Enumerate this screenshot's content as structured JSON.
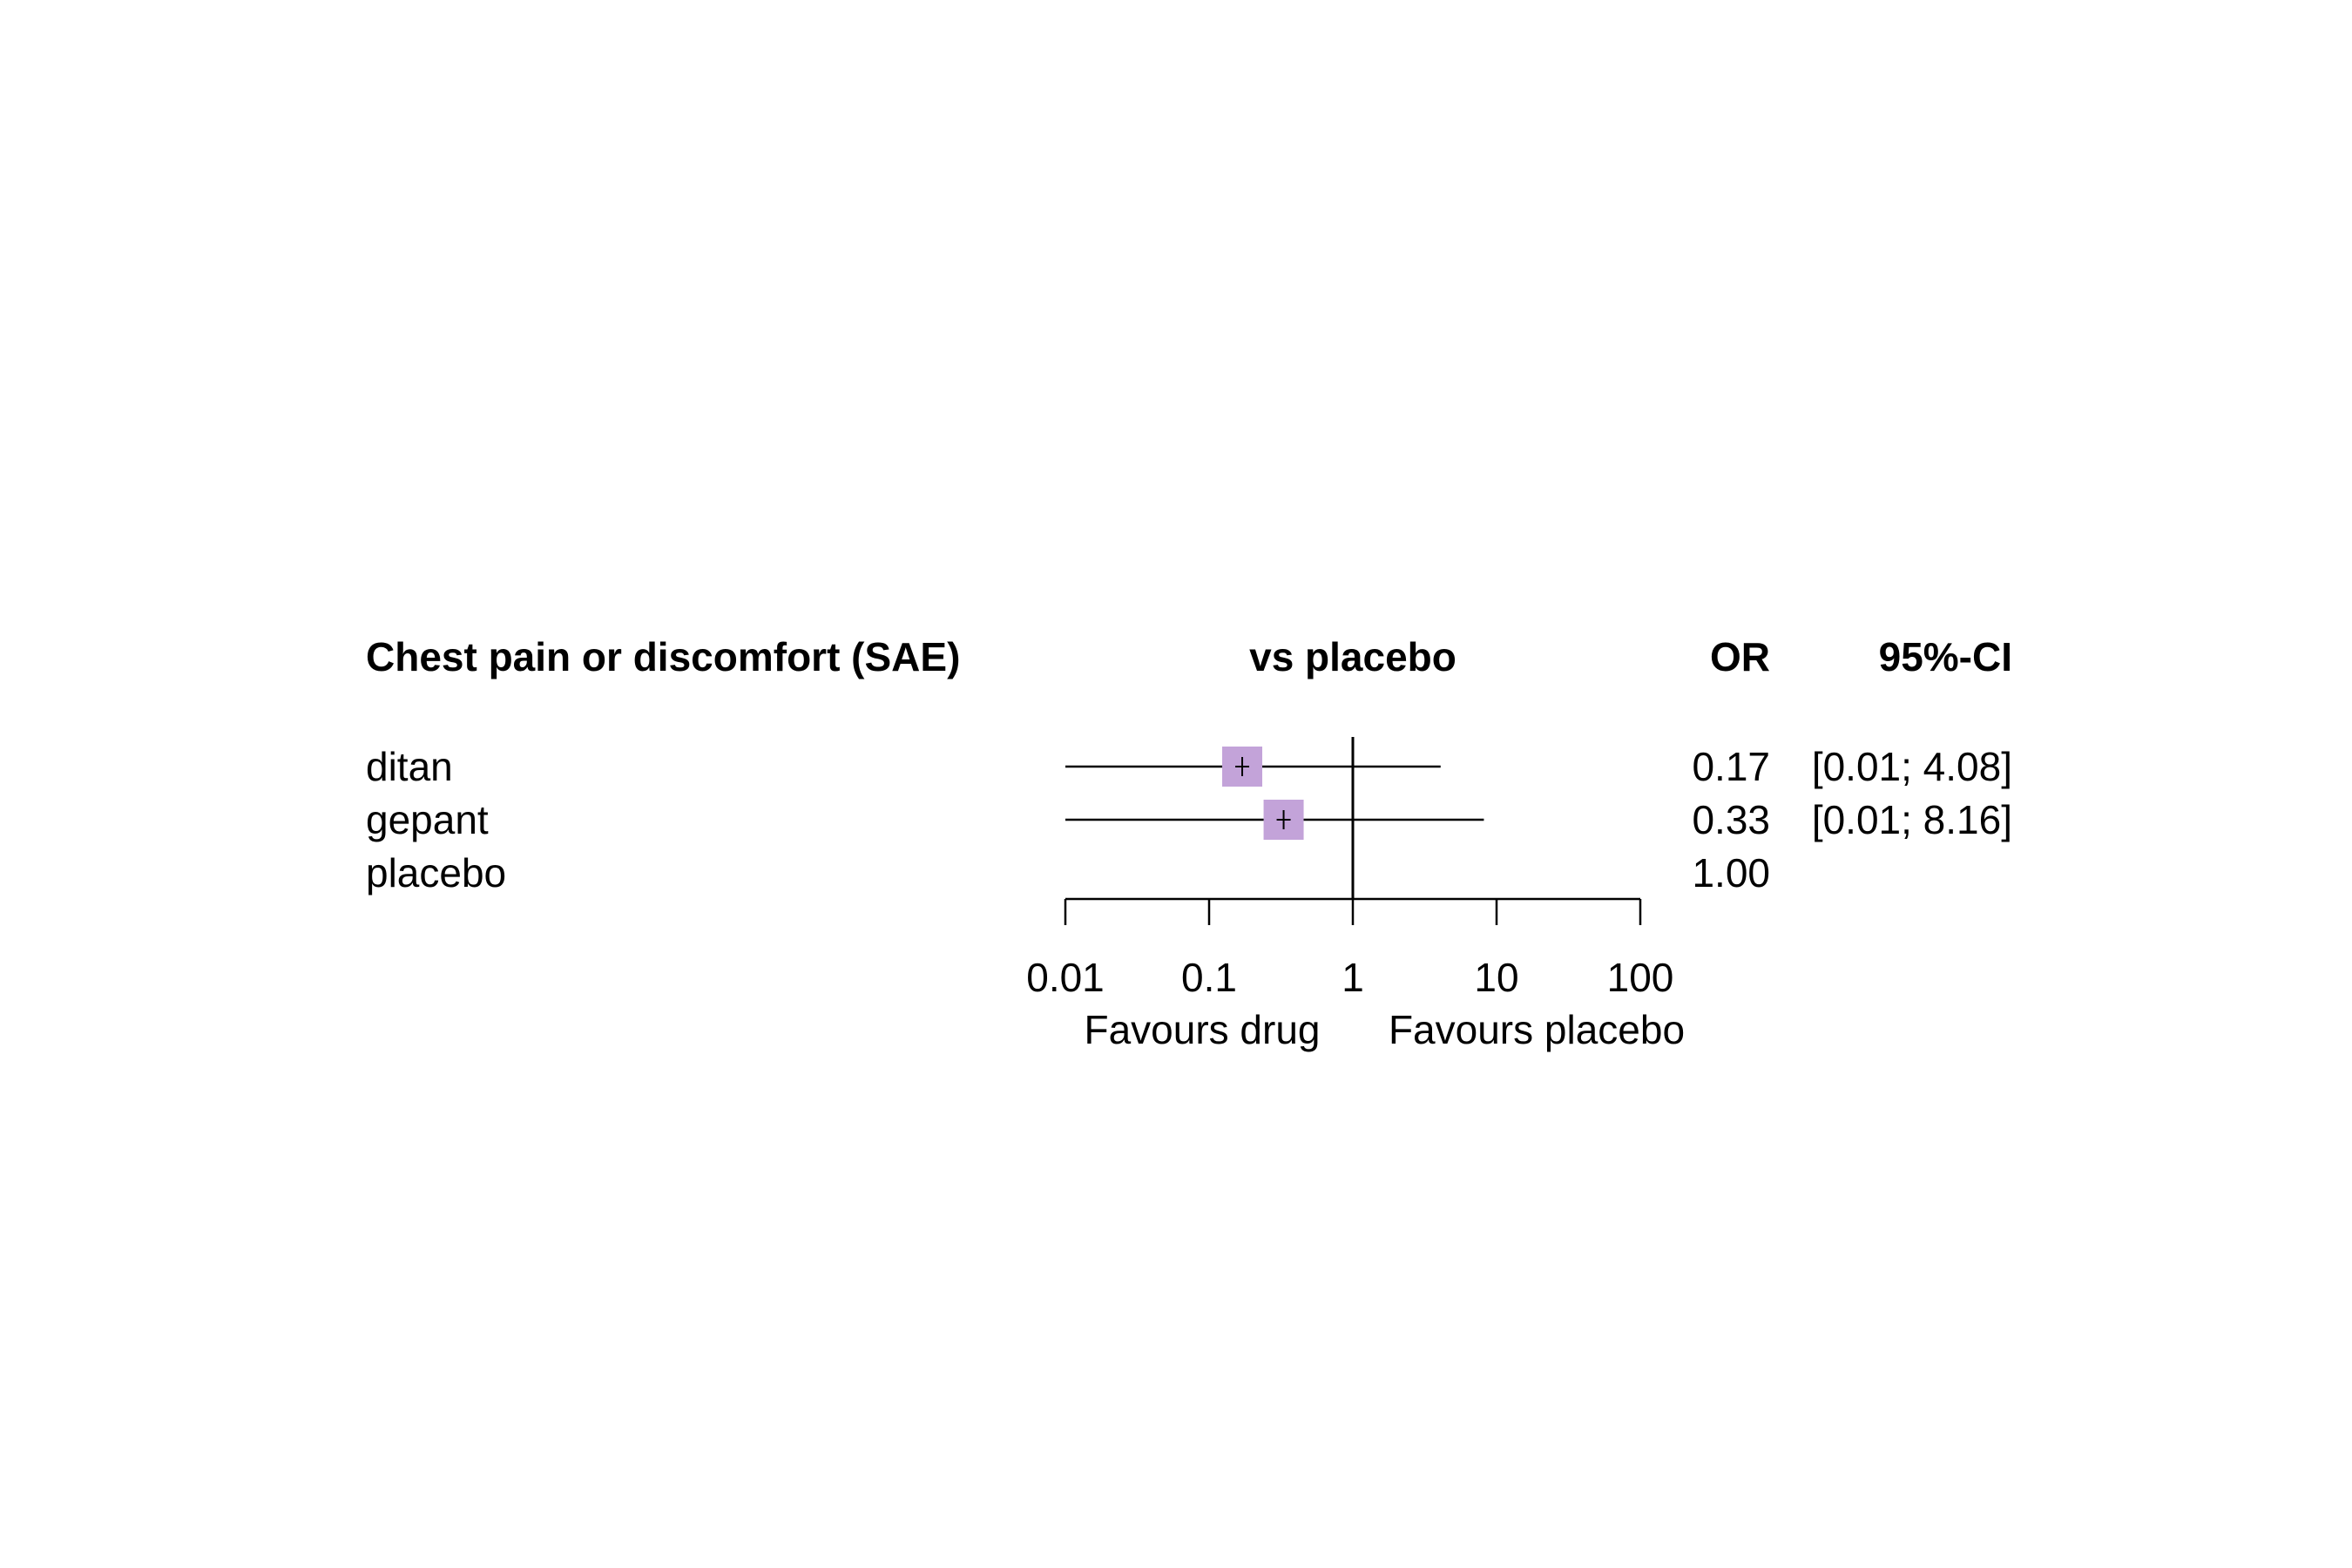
{
  "chart_data": {
    "type": "forest",
    "title": "Chest pain or discomfort (SAE)",
    "comparison_header": "vs placebo",
    "or_header": "OR",
    "ci_header": "95%-CI",
    "x_scale": "log",
    "xlim": [
      0.01,
      100
    ],
    "x_ticks": [
      0.01,
      0.1,
      1,
      10,
      100
    ],
    "x_tick_labels": [
      "0.01",
      "0.1",
      "1",
      "10",
      "100"
    ],
    "reference_value": 1,
    "left_label": "Favours drug",
    "right_label": "Favours placebo",
    "marker_color": "#c3a3d9",
    "rows": [
      {
        "label": "ditan",
        "or": 0.17,
        "lower": 0.01,
        "upper": 4.08,
        "or_text": "0.17",
        "ci_text": "[0.01; 4.08]",
        "has_interval": true
      },
      {
        "label": "gepant",
        "or": 0.33,
        "lower": 0.01,
        "upper": 8.16,
        "or_text": "0.33",
        "ci_text": "[0.01; 8.16]",
        "has_interval": true
      },
      {
        "label": "placebo",
        "or": 1.0,
        "or_text": "1.00",
        "ci_text": "",
        "has_interval": false
      }
    ]
  }
}
